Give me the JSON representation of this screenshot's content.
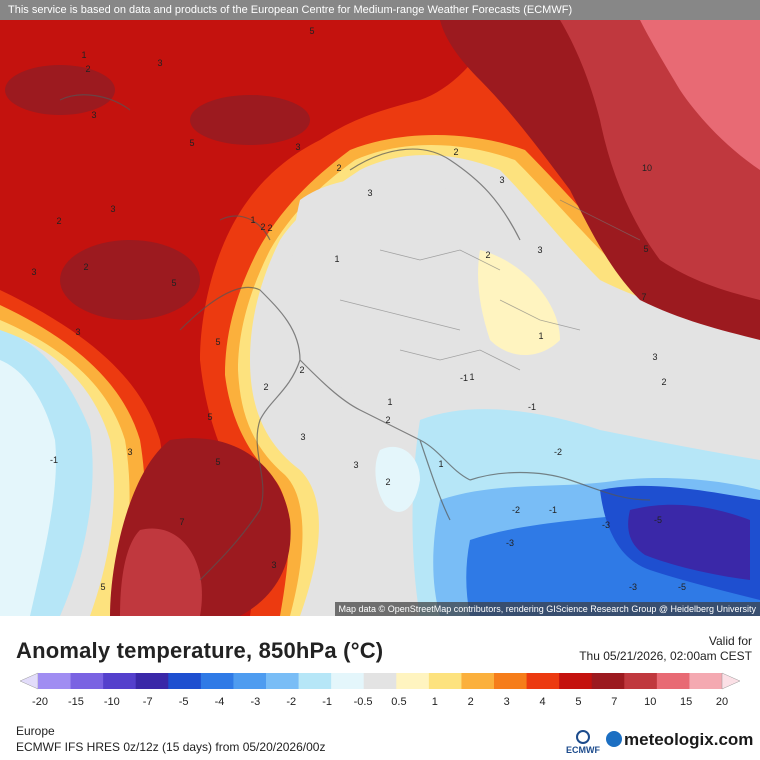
{
  "header": {
    "banner": "This service is based on data and products of the European Centre for Medium-range Weather Forecasts (ECMWF)"
  },
  "map": {
    "attribution": "Map data © OpenStreetMap contributors, rendering GIScience Research Group @ Heidelberg University",
    "contour_labels": [
      {
        "text": "1"
      },
      {
        "text": "2"
      },
      {
        "text": "3"
      },
      {
        "text": "3"
      },
      {
        "text": "5"
      },
      {
        "text": "2"
      },
      {
        "text": "5"
      },
      {
        "text": "3"
      },
      {
        "text": "2"
      },
      {
        "text": "3"
      },
      {
        "text": "5"
      },
      {
        "text": "2"
      },
      {
        "text": "3"
      },
      {
        "text": "2"
      },
      {
        "text": "1"
      },
      {
        "text": "1"
      },
      {
        "text": "2"
      },
      {
        "text": "3"
      },
      {
        "text": "10"
      },
      {
        "text": "3"
      },
      {
        "text": "2"
      },
      {
        "text": "2"
      },
      {
        "text": "3"
      },
      {
        "text": "1"
      },
      {
        "text": "1"
      },
      {
        "text": "3"
      },
      {
        "text": "5"
      },
      {
        "text": "5"
      },
      {
        "text": "3"
      },
      {
        "text": "2"
      },
      {
        "text": "-1"
      },
      {
        "text": "2"
      },
      {
        "text": "3"
      },
      {
        "text": "5"
      },
      {
        "text": "1"
      },
      {
        "text": "2"
      },
      {
        "text": "2"
      },
      {
        "text": "-1"
      },
      {
        "text": "7"
      },
      {
        "text": "5"
      },
      {
        "text": "3"
      },
      {
        "text": "-1"
      },
      {
        "text": "3"
      },
      {
        "text": "-2"
      },
      {
        "text": "-1"
      },
      {
        "text": "-2"
      },
      {
        "text": "-3"
      },
      {
        "text": "-3"
      },
      {
        "text": "-3"
      },
      {
        "text": "-5"
      },
      {
        "text": "-5"
      },
      {
        "text": "7"
      },
      {
        "text": "3"
      },
      {
        "text": "5"
      },
      {
        "text": "1"
      },
      {
        "text": "2"
      }
    ]
  },
  "title": "Anomaly temperature, 850hPa (°C)",
  "valid": {
    "label": "Valid for",
    "time": "Thu 05/21/2026, 02:00am CEST"
  },
  "legend": {
    "labels": [
      "-20",
      "-15",
      "-10",
      "-7",
      "-5",
      "-4",
      "-3",
      "-2",
      "-1",
      "-0.5",
      "0.5",
      "1",
      "2",
      "3",
      "4",
      "5",
      "7",
      "10",
      "15",
      "20"
    ],
    "colors": [
      "#e2dcfa",
      "#a08df2",
      "#7a63e2",
      "#5440cc",
      "#3a28a8",
      "#1e4fd0",
      "#2f7ae6",
      "#4e9cf0",
      "#79bdf6",
      "#b6e6f7",
      "#e4f6fb",
      "#e3e3e3",
      "#fff4c0",
      "#fde27e",
      "#fbb03c",
      "#f67d1a",
      "#ec3a10",
      "#c4120e",
      "#9c1a1f",
      "#c0383e",
      "#e86a74",
      "#f4a9b1",
      "#fbe0e6"
    ]
  },
  "footer": {
    "region": "Europe",
    "model": "ECMWF IFS HRES 0z/12z (15 days) from  05/20/2026/00z",
    "ecmwf_logo": "ECMWF",
    "brand": "meteologix.com"
  }
}
